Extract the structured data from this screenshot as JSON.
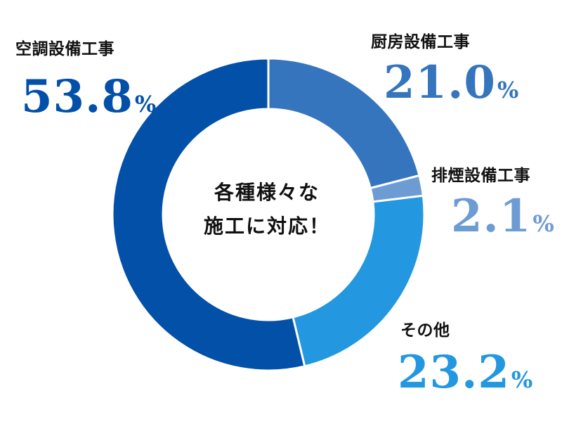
{
  "center_text": {
    "line1": "各種様々な",
    "line2": "施工に対応！"
  },
  "chart_data": {
    "type": "pie",
    "style": "donut",
    "unit": "%",
    "categories": [
      "空調設備工事",
      "厨房設備工事",
      "排煙設備工事",
      "その他"
    ],
    "values": [
      53.8,
      21.0,
      2.1,
      23.2
    ],
    "value_labels": [
      "53.8",
      "21.0",
      "2.1",
      "23.2"
    ],
    "colors": [
      "#0350A9",
      "#3575BE",
      "#6D9BD3",
      "#2397DF"
    ],
    "start_angle": "12 o'clock",
    "direction": "clockwise",
    "slice_order": [
      "厨房設備工事",
      "排煙設備工事",
      "その他",
      "空調設備工事"
    ]
  }
}
